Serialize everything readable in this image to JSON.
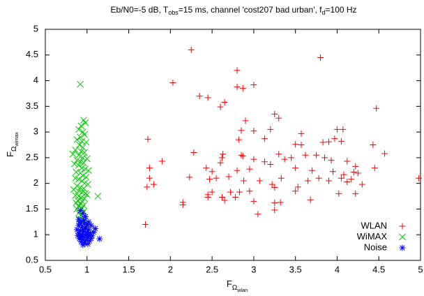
{
  "chart_data": {
    "type": "scatter",
    "title": [
      {
        "text": "Eb/N0=-5 dB, T"
      },
      {
        "text": "obs",
        "level": 1
      },
      {
        "text": "=15 ms, channel 'cost207 bad urban', f"
      },
      {
        "text": "d",
        "level": 1
      },
      {
        "text": "=100 Hz"
      }
    ],
    "xlabel": [
      {
        "text": "F"
      },
      {
        "text": "Ω",
        "level": 1
      },
      {
        "text": "wlan",
        "level": 2
      }
    ],
    "ylabel": [
      {
        "text": "F"
      },
      {
        "text": "Ω",
        "level": 1
      },
      {
        "text": "wimax",
        "level": 2
      }
    ],
    "xlim": [
      0.5,
      5
    ],
    "ylim": [
      0.5,
      5
    ],
    "xticks": [
      0.5,
      1,
      1.5,
      2,
      2.5,
      3,
      3.5,
      4,
      4.5,
      5
    ],
    "yticks": [
      0.5,
      1,
      1.5,
      2,
      2.5,
      3,
      3.5,
      4,
      4.5,
      5
    ],
    "grid": false,
    "legend": "lower right",
    "series": [
      {
        "name": "WLAN",
        "color": "#ff0000",
        "marker": "+",
        "x": [
          2.25,
          3.8,
          2.8,
          2.03,
          2.35,
          2.45,
          2.8,
          2.87,
          3.0,
          2.65,
          2.6,
          2.9,
          3.25,
          3.3,
          4.47,
          2.85,
          3.0,
          3.2,
          3.57,
          4.0,
          4.07,
          1.73,
          2.82,
          3.13,
          3.97,
          4.05,
          3.5,
          3.57,
          3.83,
          3.9,
          4.43,
          3.75,
          4.57,
          2.28,
          2.63,
          2.62,
          2.85,
          2.87,
          3.0,
          3.13,
          3.3,
          3.37,
          3.45,
          3.62,
          3.85,
          3.93,
          4.12,
          4.22,
          4.45,
          1.9,
          1.75,
          2.43,
          2.5,
          2.6,
          2.8,
          2.95,
          3.2,
          3.5,
          3.7,
          3.95,
          4.08,
          4.2,
          4.25,
          2.23,
          1.75,
          1.72,
          1.8,
          2.47,
          2.55,
          2.7,
          2.88,
          3.07,
          3.22,
          3.33,
          3.53,
          3.65,
          3.78,
          3.9,
          4.05,
          4.12,
          4.17,
          4.3,
          4.98,
          2.5,
          2.45,
          2.72,
          2.83,
          2.95,
          3.25,
          3.5,
          4.02,
          4.22,
          2.45,
          2.62,
          2.65,
          2.78,
          3.0,
          3.25,
          3.32,
          3.68,
          2.15,
          2.15,
          3.05,
          3.25,
          1.7
        ],
        "y": [
          4.6,
          4.45,
          4.2,
          3.96,
          3.7,
          3.67,
          3.88,
          3.85,
          3.92,
          3.58,
          3.49,
          3.22,
          3.35,
          3.27,
          3.46,
          3.03,
          3.02,
          3.05,
          2.97,
          3.05,
          3.05,
          2.86,
          2.85,
          2.87,
          2.87,
          2.82,
          2.76,
          2.75,
          2.8,
          2.81,
          2.75,
          2.55,
          2.58,
          2.6,
          2.57,
          2.5,
          2.55,
          2.53,
          2.47,
          2.42,
          2.57,
          2.47,
          2.5,
          2.55,
          2.5,
          2.45,
          2.43,
          2.33,
          2.3,
          2.43,
          2.3,
          2.3,
          2.23,
          2.4,
          2.25,
          2.28,
          2.37,
          2.3,
          2.25,
          2.23,
          2.17,
          2.22,
          2.2,
          2.12,
          2.1,
          1.93,
          1.98,
          2.08,
          2.1,
          2.13,
          2.05,
          2.05,
          1.98,
          2.1,
          1.93,
          2.05,
          2.1,
          2.05,
          2.1,
          2.03,
          2.08,
          1.98,
          2.1,
          1.83,
          1.78,
          1.83,
          1.83,
          1.85,
          1.92,
          1.85,
          1.8,
          1.8,
          1.73,
          1.73,
          1.67,
          1.73,
          1.65,
          1.62,
          1.63,
          1.68,
          1.63,
          1.58,
          1.4,
          1.48,
          1.2
        ]
      },
      {
        "name": "WiMAX",
        "color": "#00cc00",
        "marker": "x",
        "x": [
          0.92,
          0.96,
          0.98,
          0.93,
          0.9,
          0.95,
          0.97,
          0.92,
          0.88,
          0.94,
          0.99,
          0.91,
          0.95,
          0.86,
          0.93,
          0.97,
          0.83,
          0.9,
          0.95,
          1.0,
          0.88,
          0.92,
          0.96,
          0.85,
          0.9,
          0.94,
          0.98,
          1.02,
          0.87,
          0.92,
          0.95,
          0.99,
          0.86,
          0.9,
          0.94,
          0.97,
          1.01,
          0.88,
          0.92,
          0.96,
          0.84,
          0.9,
          0.94,
          0.98,
          1.0,
          0.86,
          0.9,
          0.93,
          0.97,
          0.89,
          0.94,
          1.13,
          0.87,
          0.92,
          0.96,
          0.9,
          0.94,
          0.88,
          0.92,
          0.96,
          0.9,
          0.93,
          0.95,
          0.91,
          0.97
        ],
        "y": [
          3.93,
          3.23,
          3.18,
          3.12,
          3.05,
          3.0,
          2.95,
          2.9,
          2.85,
          2.82,
          2.8,
          2.75,
          2.7,
          2.65,
          2.62,
          2.6,
          2.57,
          2.55,
          2.5,
          2.48,
          2.45,
          2.42,
          2.4,
          2.38,
          2.35,
          2.3,
          2.28,
          2.25,
          2.22,
          2.2,
          2.15,
          2.12,
          2.1,
          2.08,
          2.05,
          2.0,
          1.98,
          1.95,
          1.92,
          1.9,
          1.88,
          1.85,
          1.82,
          1.8,
          1.78,
          1.76,
          1.75,
          1.72,
          1.7,
          1.67,
          1.65,
          1.75,
          1.62,
          1.6,
          1.57,
          1.55,
          1.52,
          1.5,
          1.47,
          1.45,
          1.42,
          1.38,
          1.33,
          1.3,
          1.27
        ]
      },
      {
        "name": "Noise",
        "color": "#0000ff",
        "marker": "*",
        "x": [
          0.92,
          0.95,
          0.98,
          0.9,
          0.93,
          0.97,
          1.0,
          0.9,
          0.94,
          0.98,
          1.02,
          0.88,
          0.92,
          0.96,
          1.0,
          1.04,
          0.9,
          0.94,
          0.98,
          1.02,
          1.06,
          0.89,
          0.93,
          0.97,
          1.01,
          1.05,
          0.91,
          0.95,
          0.99,
          1.03,
          0.93,
          0.97,
          1.01,
          0.95,
          1.15,
          1.08,
          1.1,
          0.99,
          1.05,
          0.96,
          1.02,
          0.91,
          0.95,
          1.0,
          0.92
        ],
        "y": [
          1.47,
          1.42,
          1.35,
          1.3,
          1.25,
          1.22,
          1.2,
          1.18,
          1.15,
          1.12,
          1.1,
          1.1,
          1.08,
          1.06,
          1.05,
          1.03,
          1.03,
          1.01,
          1.0,
          0.99,
          0.98,
          0.98,
          0.96,
          0.95,
          0.94,
          0.93,
          0.92,
          0.9,
          0.89,
          0.88,
          0.86,
          0.84,
          0.82,
          0.8,
          0.92,
          1.05,
          1.12,
          1.15,
          1.18,
          1.28,
          1.25,
          1.22,
          1.1,
          1.0,
          0.97
        ]
      }
    ]
  }
}
